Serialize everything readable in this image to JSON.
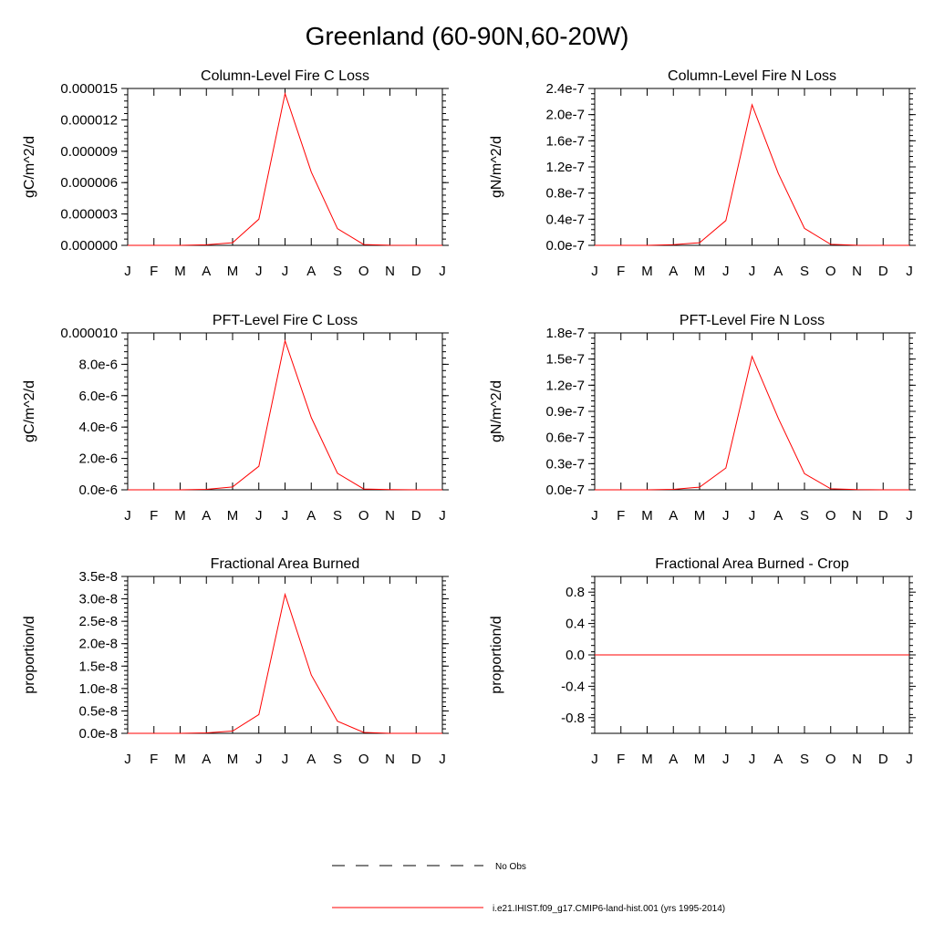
{
  "title": "Greenland (60-90N,60-20W)",
  "months": [
    "J",
    "F",
    "M",
    "A",
    "M",
    "J",
    "J",
    "A",
    "S",
    "O",
    "N",
    "D",
    "J"
  ],
  "colors": {
    "model": "#ff0000",
    "axis": "#000000",
    "obs": "#000000"
  },
  "legend": {
    "obs_label": "No Obs",
    "model_label": "i.e21.IHIST.f09_g17.CMIP6-land-hist.001 (yrs 1995-2014)"
  },
  "chart_data": [
    {
      "type": "line",
      "title": "Column-Level Fire C Loss",
      "ylabel": "gC/m^2/d",
      "ylim": [
        0,
        1.5e-05
      ],
      "yticks": [
        0,
        3e-06,
        6e-06,
        9e-06,
        1.2e-05,
        1.5e-05
      ],
      "ytick_labels": [
        "0.000000",
        "0.000003",
        "0.000006",
        "0.000009",
        "0.000012",
        "0.000015"
      ],
      "categories": [
        "J",
        "F",
        "M",
        "A",
        "M",
        "J",
        "J",
        "A",
        "S",
        "O",
        "N",
        "D",
        "J"
      ],
      "values": [
        0,
        0,
        0,
        5e-08,
        2.5e-07,
        2.5e-06,
        1.45e-05,
        7e-06,
        1.6e-06,
        8e-08,
        1e-08,
        0,
        0
      ]
    },
    {
      "type": "line",
      "title": "Column-Level Fire N Loss",
      "ylabel": "gN/m^2/d",
      "ylim": [
        0,
        2.4e-07
      ],
      "yticks": [
        0,
        4e-08,
        8e-08,
        1.2e-07,
        1.6e-07,
        2e-07,
        2.4e-07
      ],
      "ytick_labels": [
        "0.0e-7",
        "0.4e-7",
        "0.8e-7",
        "1.2e-7",
        "1.6e-7",
        "2.0e-7",
        "2.4e-7"
      ],
      "categories": [
        "J",
        "F",
        "M",
        "A",
        "M",
        "J",
        "J",
        "A",
        "S",
        "O",
        "N",
        "D",
        "J"
      ],
      "values": [
        0,
        0,
        0,
        1e-09,
        4e-09,
        3.8e-08,
        2.15e-07,
        1.1e-07,
        2.6e-08,
        1.5e-09,
        2e-10,
        0,
        0
      ]
    },
    {
      "type": "line",
      "title": "PFT-Level Fire C Loss",
      "ylabel": "gC/m^2/d",
      "ylim": [
        0,
        1e-05
      ],
      "yticks": [
        0,
        2e-06,
        4e-06,
        6e-06,
        8e-06,
        1e-05
      ],
      "ytick_labels": [
        "0.0e-6",
        "2.0e-6",
        "4.0e-6",
        "6.0e-6",
        "8.0e-6",
        "0.000010"
      ],
      "categories": [
        "J",
        "F",
        "M",
        "A",
        "M",
        "J",
        "J",
        "A",
        "S",
        "O",
        "N",
        "D",
        "J"
      ],
      "values": [
        0,
        0,
        0,
        3e-08,
        1.8e-07,
        1.5e-06,
        9.5e-06,
        4.6e-06,
        1.05e-06,
        5e-08,
        1e-08,
        0,
        0
      ]
    },
    {
      "type": "line",
      "title": "PFT-Level Fire N Loss",
      "ylabel": "gN/m^2/d",
      "ylim": [
        0,
        1.8e-07
      ],
      "yticks": [
        0,
        3e-08,
        6e-08,
        9e-08,
        1.2e-07,
        1.5e-07,
        1.8e-07
      ],
      "ytick_labels": [
        "0.0e-7",
        "0.3e-7",
        "0.6e-7",
        "0.9e-7",
        "1.2e-7",
        "1.5e-7",
        "1.8e-7"
      ],
      "categories": [
        "J",
        "F",
        "M",
        "A",
        "M",
        "J",
        "J",
        "A",
        "S",
        "O",
        "N",
        "D",
        "J"
      ],
      "values": [
        0,
        0,
        0,
        5e-10,
        3e-09,
        2.5e-08,
        1.53e-07,
        8.2e-08,
        1.85e-08,
        1.2e-09,
        2e-10,
        0,
        0
      ]
    },
    {
      "type": "line",
      "title": "Fractional Area Burned",
      "ylabel": "proportion/d",
      "ylim": [
        0,
        3.5e-08
      ],
      "yticks": [
        0,
        5e-09,
        1e-08,
        1.5e-08,
        2e-08,
        2.5e-08,
        3e-08,
        3.5e-08
      ],
      "ytick_labels": [
        "0.0e-8",
        "0.5e-8",
        "1.0e-8",
        "1.5e-8",
        "2.0e-8",
        "2.5e-8",
        "3.0e-8",
        "3.5e-8"
      ],
      "categories": [
        "J",
        "F",
        "M",
        "A",
        "M",
        "J",
        "J",
        "A",
        "S",
        "O",
        "N",
        "D",
        "J"
      ],
      "values": [
        0,
        0,
        0,
        1e-10,
        5e-10,
        4.2e-09,
        3.1e-08,
        1.3e-08,
        2.7e-09,
        2e-10,
        1e-11,
        0,
        0
      ]
    },
    {
      "type": "line",
      "title": "Fractional Area Burned - Crop",
      "ylabel": "proportion/d",
      "ylim": [
        -1,
        1
      ],
      "yticks": [
        -0.8,
        -0.4,
        0,
        0.4,
        0.8
      ],
      "ytick_labels": [
        "-0.8",
        "-0.4",
        "0.0",
        "0.4",
        "0.8"
      ],
      "categories": [
        "J",
        "F",
        "M",
        "A",
        "M",
        "J",
        "J",
        "A",
        "S",
        "O",
        "N",
        "D",
        "J"
      ],
      "values": [
        0,
        0,
        0,
        0,
        0,
        0,
        0,
        0,
        0,
        0,
        0,
        0,
        0
      ]
    }
  ]
}
